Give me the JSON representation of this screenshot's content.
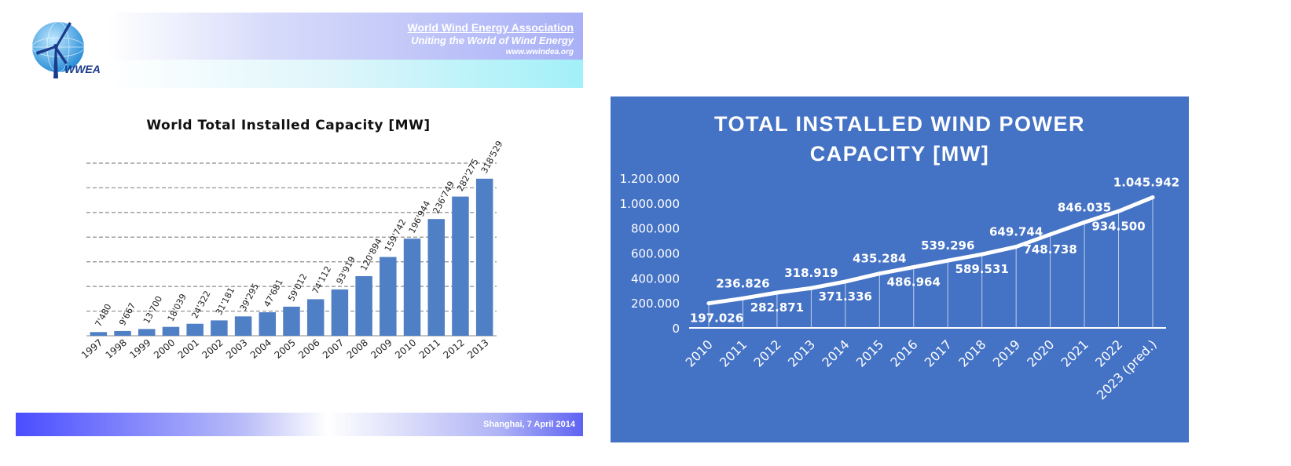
{
  "left_slide": {
    "header": {
      "org_name": "World Wind Energy Association",
      "tagline": "Uniting the World of Wind Energy",
      "url": "www.wwindea.org",
      "logo_text": "WWEA"
    },
    "footer": {
      "text": "Shanghai, 7 April 2014"
    }
  },
  "right_panel": {
    "title_line1": "TOTAL INSTALLED WIND POWER",
    "title_line2": "CAPACITY [MW]"
  },
  "colors": {
    "bar": "#4f7fc5",
    "right_background": "#4472c4",
    "line": "#ffffff"
  },
  "chart_data": [
    {
      "type": "bar",
      "title": "World Total Installed Capacity [MW]",
      "xlabel": "",
      "ylabel": "",
      "categories": [
        "1997",
        "1998",
        "1999",
        "2000",
        "2001",
        "2002",
        "2003",
        "2004",
        "2005",
        "2006",
        "2007",
        "2008",
        "2009",
        "2010",
        "2011",
        "2012",
        "2013"
      ],
      "values": [
        7480,
        9667,
        13700,
        18039,
        24322,
        31181,
        39295,
        47681,
        59012,
        74112,
        93919,
        120894,
        159742,
        196944,
        236749,
        282275,
        318529
      ],
      "data_labels": [
        "7'480",
        "9'667",
        "13'700",
        "18'039",
        "24'322",
        "31'181",
        "39'295",
        "47'681",
        "59'012",
        "74'112",
        "93'919",
        "120'894",
        "159'742",
        "196'944",
        "236'749",
        "282'275",
        "318'529"
      ],
      "ylim": [
        0,
        350000
      ],
      "y_axis_labels_shown": false,
      "grid": "horizontal dashed"
    },
    {
      "type": "line",
      "title": "TOTAL INSTALLED WIND POWER CAPACITY [MW]",
      "categories": [
        "2010",
        "2011",
        "2012",
        "2013",
        "2014",
        "2015",
        "2016",
        "2017",
        "2018",
        "2019",
        "2020",
        "2021",
        "2022",
        "2023 (pred.)"
      ],
      "values": [
        197026,
        236826,
        282871,
        318919,
        371336,
        435284,
        486964,
        539296,
        589531,
        649744,
        748738,
        846035,
        934500,
        1045942
      ],
      "data_labels": [
        "197.026",
        "236.826",
        "282.871",
        "318.919",
        "371.336",
        "435.284",
        "486.964",
        "539.296",
        "589.531",
        "649.744",
        "748.738",
        "846.035",
        "934.500",
        "1.045.942"
      ],
      "label_position": [
        "below",
        "above",
        "below",
        "above",
        "below",
        "above",
        "below",
        "above",
        "below",
        "above",
        "below",
        "above",
        "below",
        "above"
      ],
      "y_ticks": [
        0,
        200000,
        400000,
        600000,
        800000,
        1000000,
        1200000
      ],
      "y_tick_labels": [
        "0",
        "200.000",
        "400.000",
        "600.000",
        "800.000",
        "1.000.000",
        "1.200.000"
      ],
      "ylim": [
        0,
        1200000
      ],
      "grid": false,
      "drop_lines": true
    }
  ]
}
